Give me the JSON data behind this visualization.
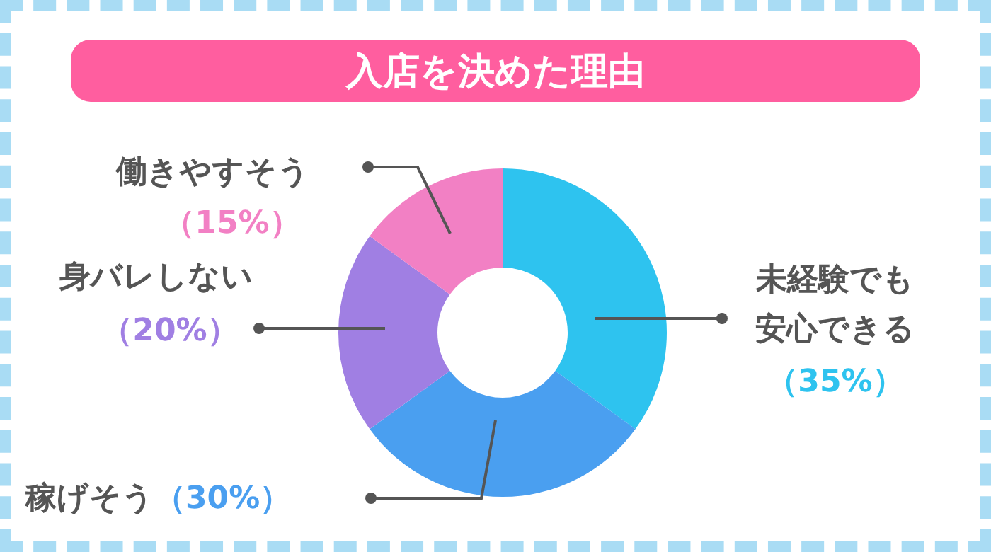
{
  "chart_data": {
    "type": "donut",
    "title": "入店を決めた理由",
    "categories": [
      "未経験でも安心できる",
      "稼げそう",
      "身バレしない",
      "働きやすそう"
    ],
    "values": [
      35,
      30,
      20,
      15
    ],
    "value_labels": [
      "（35%）",
      "（30%）",
      "（20%）",
      "（15%）"
    ],
    "colors": [
      "#2ec3ef",
      "#4a9ff0",
      "#a07fe3",
      "#f280c4"
    ],
    "legend": false
  }
}
